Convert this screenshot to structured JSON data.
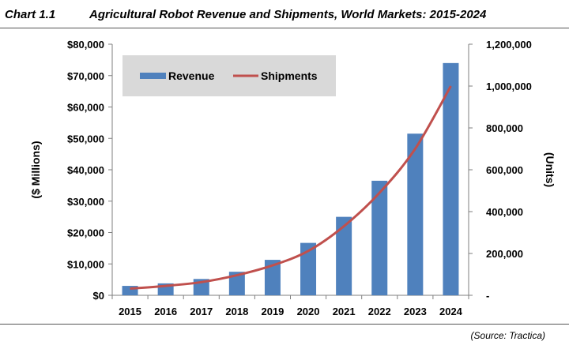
{
  "header": {
    "chart_number": "Chart 1.1",
    "title": "Agricultural Robot Revenue and Shipments, World Markets: 2015-2024"
  },
  "source": "(Source: Tractica)",
  "chart_data": {
    "type": "bar",
    "title": "Agricultural Robot Revenue and Shipments, World Markets: 2015-2024",
    "categories": [
      "2015",
      "2016",
      "2017",
      "2018",
      "2019",
      "2020",
      "2021",
      "2022",
      "2023",
      "2024"
    ],
    "series": [
      {
        "name": "Revenue",
        "type": "bar",
        "axis": "left",
        "color": "#4f81bd",
        "values": [
          3000,
          3800,
          5200,
          7500,
          11300,
          16700,
          25000,
          36500,
          51500,
          74000
        ]
      },
      {
        "name": "Shipments",
        "type": "line",
        "axis": "right",
        "color": "#c0504d",
        "values": [
          32000,
          45000,
          63000,
          96000,
          143000,
          212000,
          330000,
          490000,
          700000,
          1000000
        ]
      }
    ],
    "y_left": {
      "label": "($ Millions)",
      "lim": [
        0,
        80000
      ],
      "ticks": [
        0,
        10000,
        20000,
        30000,
        40000,
        50000,
        60000,
        70000,
        80000
      ],
      "tick_labels": [
        "$0",
        "$10,000",
        "$20,000",
        "$30,000",
        "$40,000",
        "$50,000",
        "$60,000",
        "$70,000",
        "$80,000"
      ]
    },
    "y_right": {
      "label": "(Units)",
      "lim": [
        0,
        1200000
      ],
      "ticks": [
        0,
        200000,
        400000,
        600000,
        800000,
        1000000,
        1200000
      ],
      "tick_labels": [
        "-",
        "200,000",
        "400,000",
        "600,000",
        "800,000",
        "1,000,000",
        "1,200,000"
      ]
    },
    "grid": false,
    "legend": "top-left",
    "legend_background": "#d9d9d9"
  }
}
